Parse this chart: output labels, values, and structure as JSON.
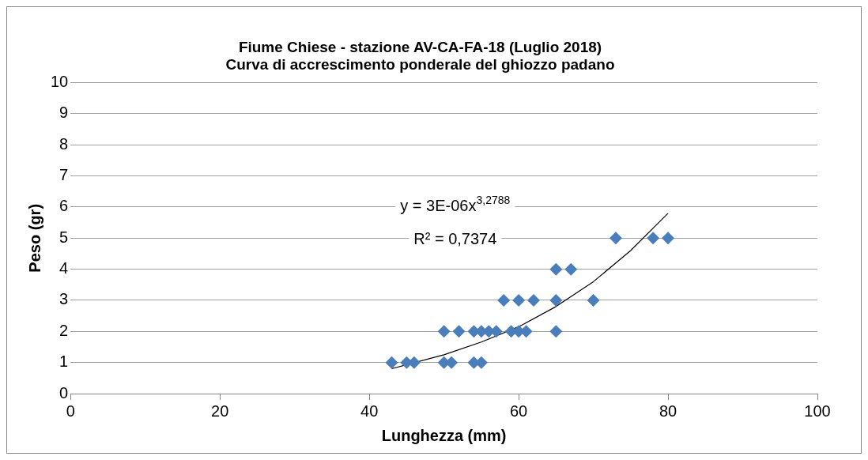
{
  "chart_data": {
    "type": "scatter",
    "title": "Fiume Chiese - stazione AV-CA-FA-18 (Luglio 2018)",
    "subtitle": "Curva di accrescimento ponderale del ghiozzo padano",
    "xlabel": "Lunghezza (mm)",
    "ylabel": "Peso (gr)",
    "series": [
      {
        "type": "scatter",
        "color": "#4a7ebb",
        "marker": "diamond",
        "x": [
          43,
          45,
          46,
          50,
          51,
          54,
          55,
          50,
          52,
          54,
          55,
          56,
          57,
          59,
          60,
          61,
          65,
          58,
          60,
          62,
          65,
          70,
          65,
          67,
          73,
          78,
          80
        ],
        "values": [
          1,
          1,
          1,
          1,
          1,
          1,
          1,
          2,
          2,
          2,
          2,
          2,
          2,
          2,
          2,
          2,
          2,
          3,
          3,
          3,
          3,
          3,
          4,
          4,
          5,
          5,
          5
        ]
      },
      {
        "type": "line",
        "color": "#000000",
        "marker": "none",
        "x": [
          43,
          50,
          55,
          60,
          65,
          70,
          75,
          80
        ],
        "values": [
          0.8,
          1.25,
          1.66,
          2.15,
          2.8,
          3.6,
          4.6,
          5.8
        ]
      }
    ],
    "xlim": [
      0,
      100
    ],
    "xticks": [
      0,
      20,
      40,
      60,
      80,
      100
    ],
    "ylim": [
      0,
      10
    ],
    "yticks": [
      0,
      1,
      2,
      3,
      4,
      5,
      6,
      7,
      8,
      9,
      10
    ],
    "grid": "y",
    "legend": false,
    "annotations": [
      "y = 3E-06x$^{3,2788}$",
      "R² = 0,7374"
    ]
  }
}
